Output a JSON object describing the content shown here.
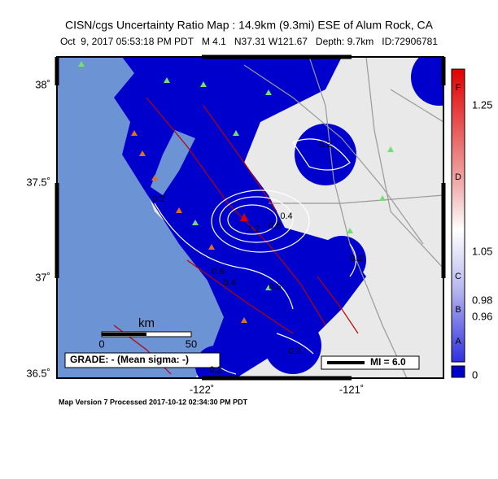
{
  "header": {
    "title": "CISN/cgs Uncertainty Ratio Map : 14.9km (9.3mi) ESE of Alum Rock, CA",
    "subtitle": "Oct  9, 2017 05:53:18 PM PDT   M 4.1   N37.31 W121.67   Depth: 9.7km   ID:72906781"
  },
  "map": {
    "lat_labels": [
      "38˚",
      "37.5˚",
      "37˚",
      "36.5˚"
    ],
    "lon_labels": [
      "-122˚",
      "-121˚"
    ],
    "contour_labels": [
      "0.2",
      "0.2",
      "0.2",
      "0.4",
      "0.6",
      "0.6",
      "0.2",
      "0.2",
      "1.2",
      "0.6",
      "0.4"
    ]
  },
  "scale": {
    "unit": "km",
    "ticks": [
      "0",
      "50"
    ]
  },
  "grade": "GRADE: - (Mean sigma: -)",
  "legend": {
    "mi": "MI = 6.0"
  },
  "colorbar": {
    "letters": [
      "F",
      "D",
      "C",
      "B",
      "A"
    ],
    "values": [
      "1.25",
      "1.05",
      "0.98",
      "0.96",
      "0"
    ]
  },
  "footer": "Map Version 7 Processed 2017-10-12 02:34:30 PM PDT"
}
